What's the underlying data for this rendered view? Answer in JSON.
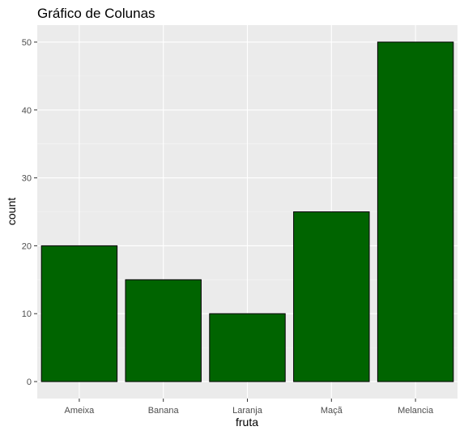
{
  "chart_data": {
    "type": "bar",
    "title": "Gráfico de Colunas",
    "xlabel": "fruta",
    "ylabel": "count",
    "categories": [
      "Ameixa",
      "Banana",
      "Laranja",
      "Maçã",
      "Melancia"
    ],
    "values": [
      20,
      15,
      10,
      25,
      50
    ],
    "ylim": [
      -2.5,
      52.5
    ],
    "yticks": [
      0,
      10,
      20,
      30,
      40,
      50
    ],
    "grid": true,
    "legend": "none",
    "colors": {
      "bar_fill": "#006400",
      "bar_stroke": "#000000",
      "panel_background": "#ebebeb",
      "grid_major": "#ffffff",
      "grid_minor": "#f5f5f5"
    }
  }
}
